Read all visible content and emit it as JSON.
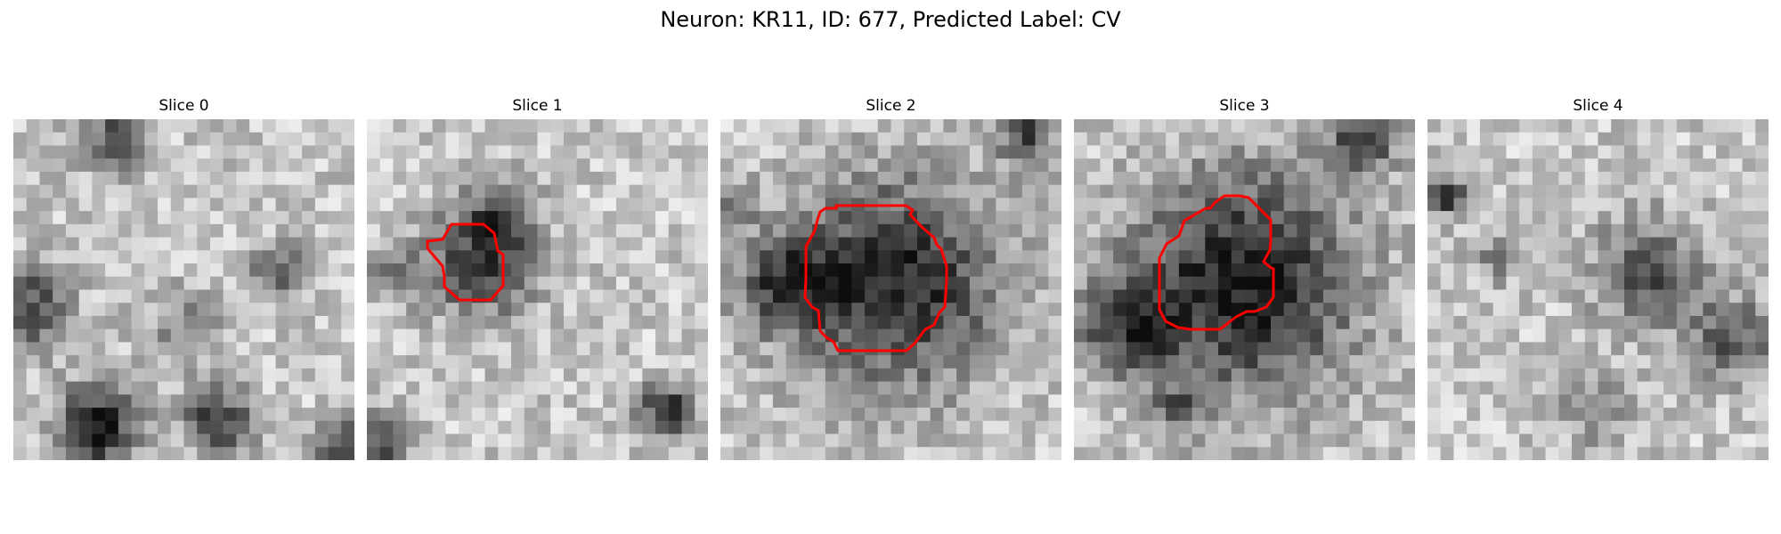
{
  "figure": {
    "title": "Neuron: KR11, ID: 677, Predicted Label: CV"
  },
  "panels": [
    {
      "title": "Slice 0",
      "has_contour": false
    },
    {
      "title": "Slice 1",
      "has_contour": true
    },
    {
      "title": "Slice 2",
      "has_contour": true
    },
    {
      "title": "Slice 3",
      "has_contour": true
    },
    {
      "title": "Slice 4",
      "has_contour": false
    }
  ],
  "colors": {
    "contour": "#ff0000",
    "background": "#ffffff"
  },
  "image_style": {
    "colormap": "grayscale",
    "pixel_grid": 26
  }
}
